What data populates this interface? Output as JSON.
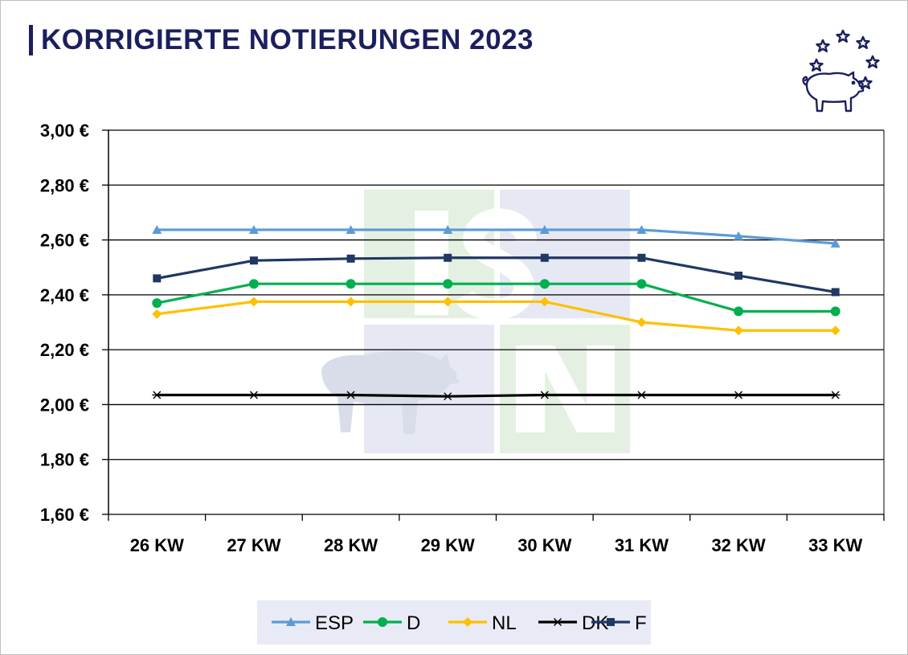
{
  "header": {
    "title": "KORRIGIERTE NOTIERUNGEN 2023"
  },
  "logo": {
    "icon": "pig-with-stars-icon",
    "color": "#1b1f5e"
  },
  "watermark": {
    "icon": "isn-pig-watermark",
    "letters": [
      "I",
      "S",
      "N"
    ]
  },
  "chart_data": {
    "type": "line",
    "title": "KORRIGIERTE NOTIERUNGEN 2023",
    "categories": [
      "26 KW",
      "27 KW",
      "28 KW",
      "29 KW",
      "30 KW",
      "31 KW",
      "32 KW",
      "33 KW"
    ],
    "y_ticks": [
      "1,60 €",
      "1,80 €",
      "2,00 €",
      "2,20 €",
      "2,40 €",
      "2,60 €",
      "2,80 €",
      "3,00 €"
    ],
    "ylim": [
      1.6,
      3.0
    ],
    "y_step": 0.2,
    "grid": true,
    "legend_position": "bottom",
    "series": [
      {
        "name": "ESP",
        "color": "#5b9bd5",
        "marker": "triangle",
        "values": [
          2.637,
          2.637,
          2.637,
          2.637,
          2.637,
          2.637,
          2.614,
          2.587
        ]
      },
      {
        "name": "D",
        "color": "#00b050",
        "marker": "circle",
        "values": [
          2.37,
          2.44,
          2.44,
          2.44,
          2.44,
          2.44,
          2.34,
          2.34
        ]
      },
      {
        "name": "NL",
        "color": "#ffc000",
        "marker": "diamond",
        "values": [
          2.33,
          2.375,
          2.375,
          2.375,
          2.375,
          2.3,
          2.27,
          2.27
        ]
      },
      {
        "name": "DK",
        "color": "#000000",
        "marker": "star",
        "values": [
          2.035,
          2.035,
          2.035,
          2.03,
          2.035,
          2.035,
          2.035,
          2.035
        ]
      },
      {
        "name": "F",
        "color": "#1f3864",
        "marker": "square",
        "values": [
          2.46,
          2.525,
          2.532,
          2.535,
          2.535,
          2.535,
          2.47,
          2.41
        ]
      }
    ]
  }
}
